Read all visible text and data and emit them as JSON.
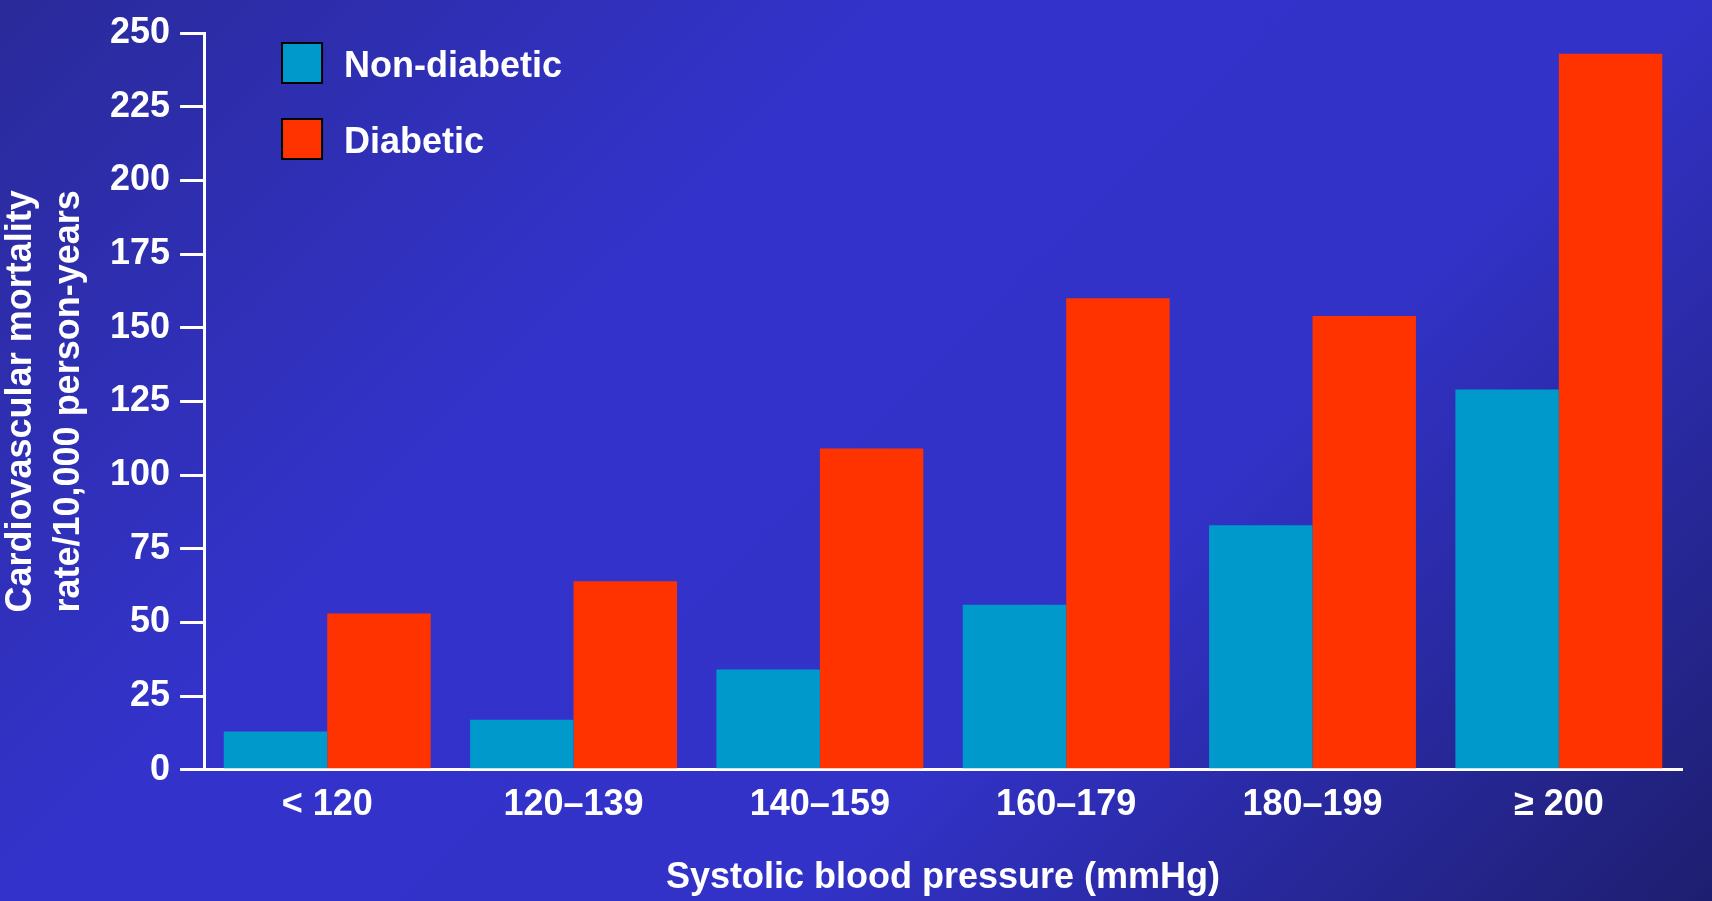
{
  "chart_data": {
    "type": "bar",
    "xlabel": "Systolic blood pressure (mmHg)",
    "ylabel": "Cardiovascular mortality\nrate/10,000 person-years",
    "categories": [
      "< 120",
      "120–139",
      "140–159",
      "160–179",
      "180–199",
      "≥ 200"
    ],
    "series": [
      {
        "name": "Non-diabetic",
        "color": "#0099cc",
        "values": [
          13,
          17,
          34,
          56,
          83,
          129
        ]
      },
      {
        "name": "Diabetic",
        "color": "#ff3300",
        "values": [
          53,
          64,
          109,
          160,
          154,
          243
        ]
      }
    ],
    "ylim": [
      0,
      250
    ],
    "yticks": [
      0,
      25,
      50,
      75,
      100,
      125,
      150,
      175,
      200,
      225,
      250
    ],
    "grid": false,
    "legend": "top left"
  }
}
